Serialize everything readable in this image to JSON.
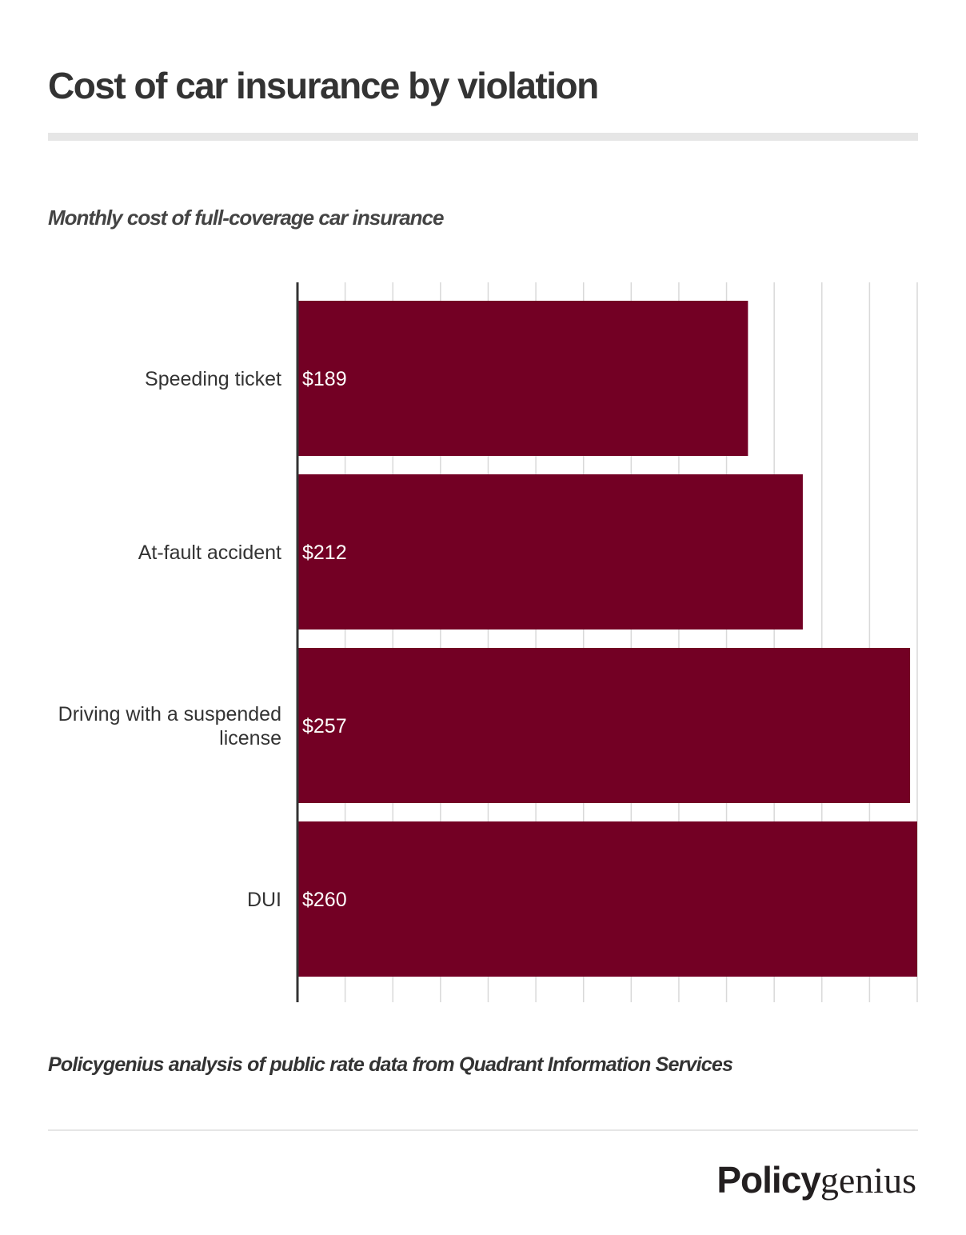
{
  "title": "Cost of car insurance by violation",
  "subtitle": "Monthly cost of full-coverage car insurance",
  "source": "Policygenius analysis of public rate data from Quadrant Information Services",
  "logo": {
    "bold": "Policy",
    "light": "genius"
  },
  "colors": {
    "bar": "#730024",
    "grid": "#d9d9d9",
    "axis": "#333333"
  },
  "chart_data": {
    "type": "bar",
    "orientation": "horizontal",
    "categories": [
      [
        "Speeding ticket"
      ],
      [
        "At-fault accident"
      ],
      [
        "Driving with a suspended",
        "license"
      ],
      [
        "DUI"
      ]
    ],
    "values": [
      189,
      212,
      257,
      260
    ],
    "data_labels": [
      "$189",
      "$212",
      "$257",
      "$260"
    ],
    "xlim": [
      0,
      260
    ],
    "grid": true,
    "grid_step": 20,
    "xlabel": "",
    "ylabel": ""
  }
}
